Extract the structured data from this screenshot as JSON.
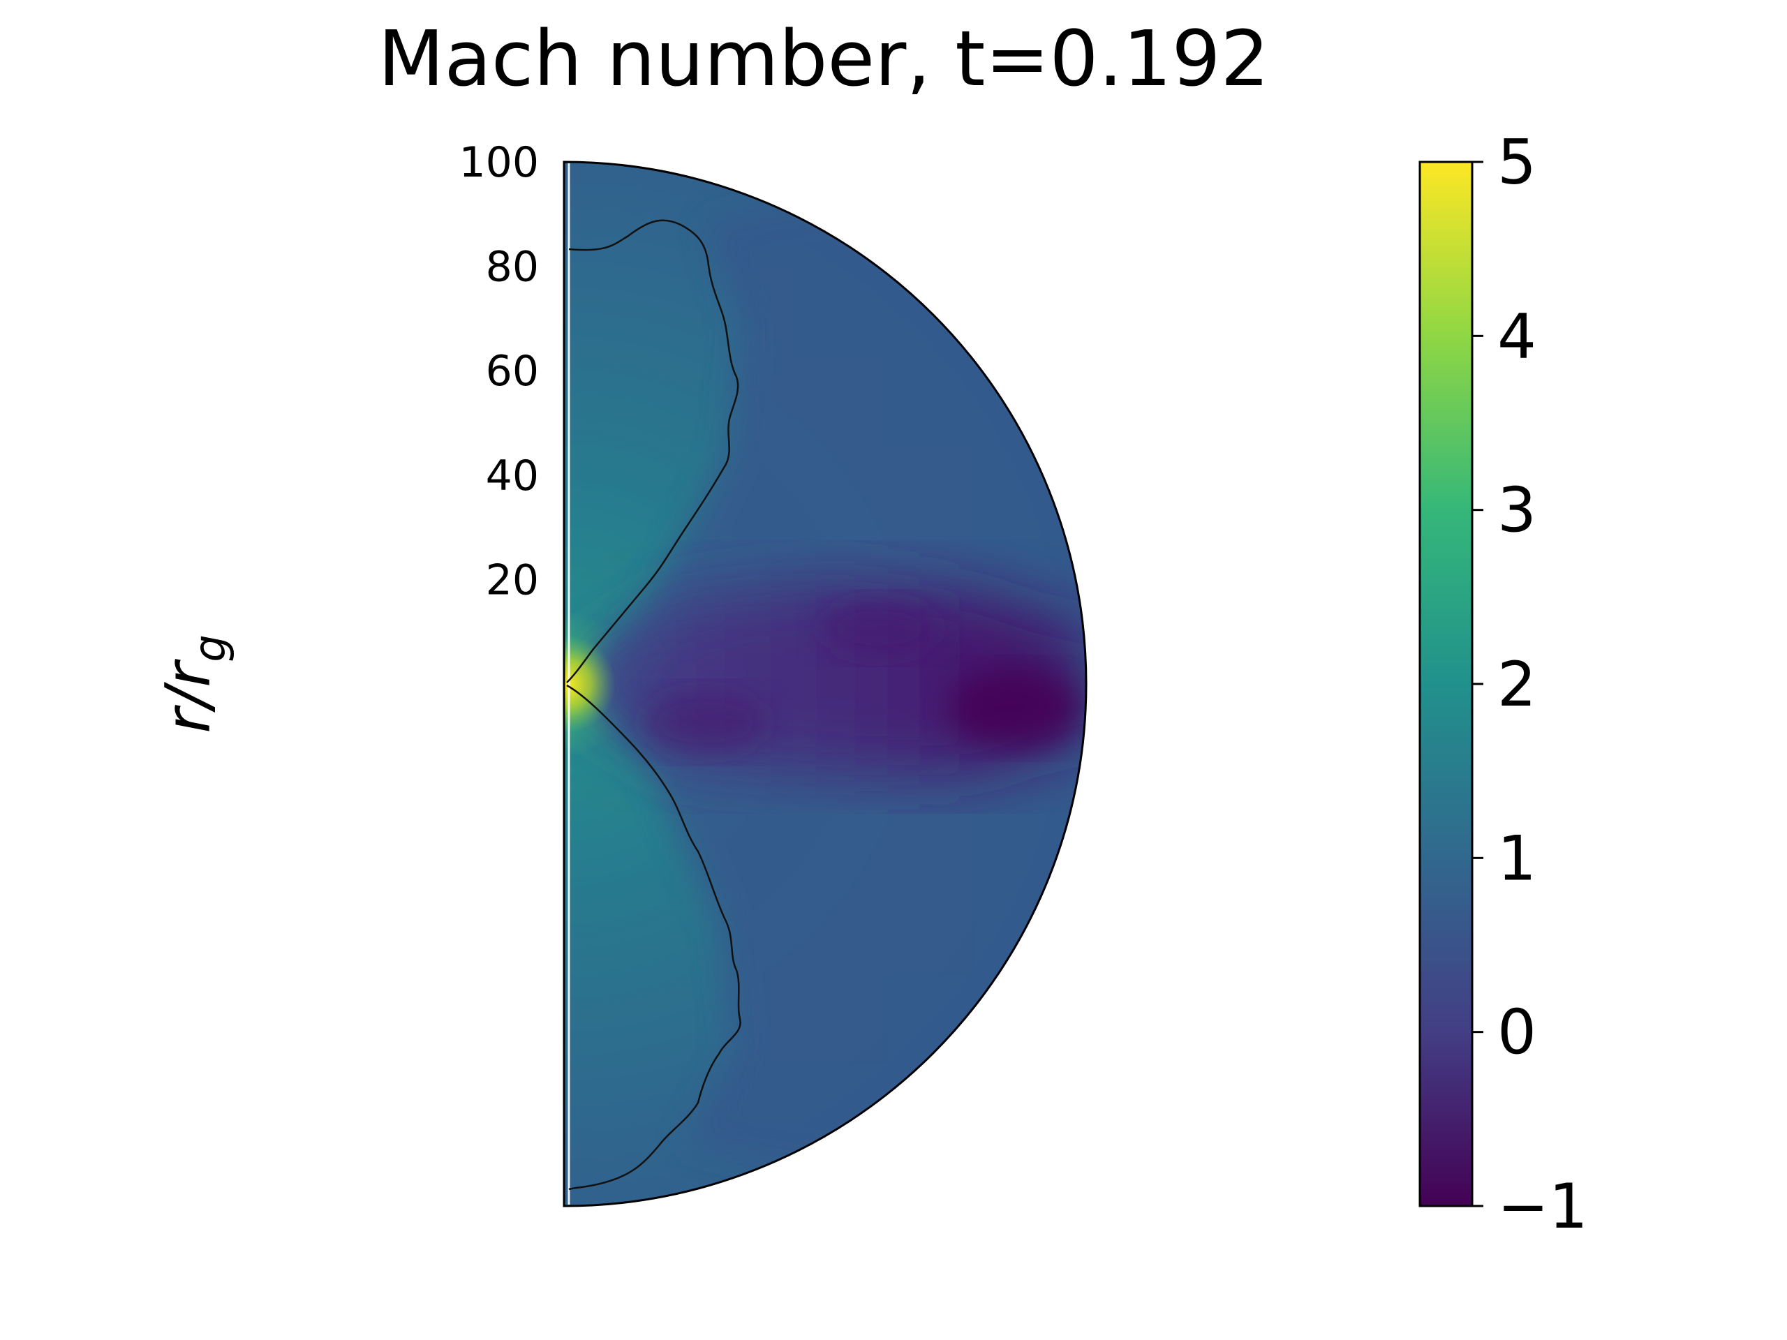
{
  "chart_data": {
    "type": "heatmap",
    "geometry": "polar half-disk (r, theta)",
    "title": "Mach number, t=0.192",
    "ylabel": "r/r_g",
    "ylabel_main": "r/r",
    "ylabel_sub": "g",
    "r_range": [
      0,
      100
    ],
    "r_ticks": [
      100,
      80,
      60,
      40,
      20
    ],
    "r_tick_labels": [
      "100",
      "80",
      "60",
      "40",
      "20"
    ],
    "colormap": "viridis",
    "colorbar": {
      "vmin": -1,
      "vmax": 5,
      "ticks": [
        5,
        4,
        3,
        2,
        1,
        0,
        -1
      ],
      "tick_labels": [
        "5",
        "4",
        "3",
        "2",
        "1",
        "0",
        "−1"
      ]
    },
    "contour_level": 1,
    "field_values": {
      "axis_jet_near_center": 5,
      "polar_region": 2,
      "outer_boundary": 1,
      "equatorial_disk": -0.8
    },
    "colors": {
      "stop_-1": "#440154",
      "stop_0": "#433e85",
      "stop_1": "#31688e",
      "stop_2": "#21918c",
      "stop_3": "#35b779",
      "stop_4": "#8fd744",
      "stop_5": "#fde725"
    }
  }
}
